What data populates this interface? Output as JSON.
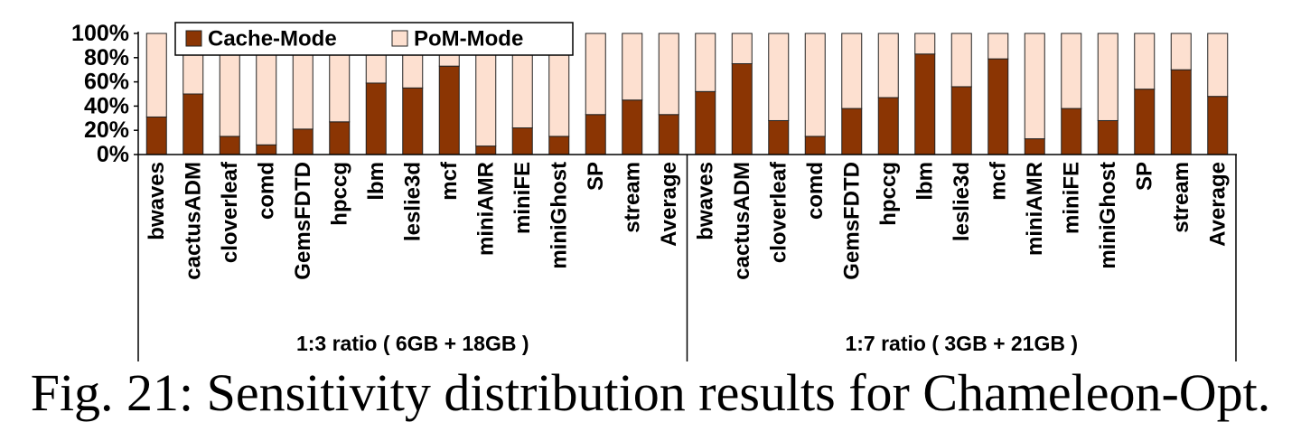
{
  "chart_data": {
    "type": "bar",
    "stacked": true,
    "percent": true,
    "title": "",
    "ylabel": "",
    "ylim": [
      0,
      100
    ],
    "yticks": [
      "0%",
      "20%",
      "40%",
      "60%",
      "80%",
      "100%"
    ],
    "legend": {
      "position": "top-left",
      "entries": [
        "Cache-Mode",
        "PoM-Mode"
      ]
    },
    "colors": {
      "Cache-Mode": "#8B3503",
      "PoM-Mode": "#FDE0D0",
      "edge": "#222222"
    },
    "groups": [
      {
        "label": "1:3 ratio ( 6GB + 18GB )",
        "categories": [
          "bwaves",
          "cactusADM",
          "cloverleaf",
          "comd",
          "GemsFDTD",
          "hpccg",
          "lbm",
          "leslie3d",
          "mcf",
          "miniAMR",
          "miniFE",
          "miniGhost",
          "SP",
          "stream",
          "Average"
        ],
        "series": [
          {
            "name": "Cache-Mode",
            "values": [
              31,
              50,
              15,
              8,
              21,
              27,
              59,
              55,
              73,
              7,
              22,
              15,
              33,
              45,
              33
            ]
          },
          {
            "name": "PoM-Mode",
            "values": [
              69,
              50,
              85,
              92,
              79,
              73,
              41,
              45,
              27,
              93,
              78,
              85,
              67,
              55,
              67
            ]
          }
        ]
      },
      {
        "label": "1:7 ratio ( 3GB + 21GB )",
        "categories": [
          "bwaves",
          "cactusADM",
          "cloverleaf",
          "comd",
          "GemsFDTD",
          "hpccg",
          "lbm",
          "leslie3d",
          "mcf",
          "miniAMR",
          "miniFE",
          "miniGhost",
          "SP",
          "stream",
          "Average"
        ],
        "series": [
          {
            "name": "Cache-Mode",
            "values": [
              52,
              75,
              28,
              15,
              38,
              47,
              83,
              56,
              79,
              13,
              38,
              28,
              54,
              70,
              48
            ]
          },
          {
            "name": "PoM-Mode",
            "values": [
              48,
              25,
              72,
              85,
              62,
              53,
              17,
              44,
              21,
              87,
              62,
              72,
              46,
              30,
              52
            ]
          }
        ]
      }
    ]
  },
  "caption": "Fig. 21: Sensitivity distribution results for Chameleon-Opt."
}
